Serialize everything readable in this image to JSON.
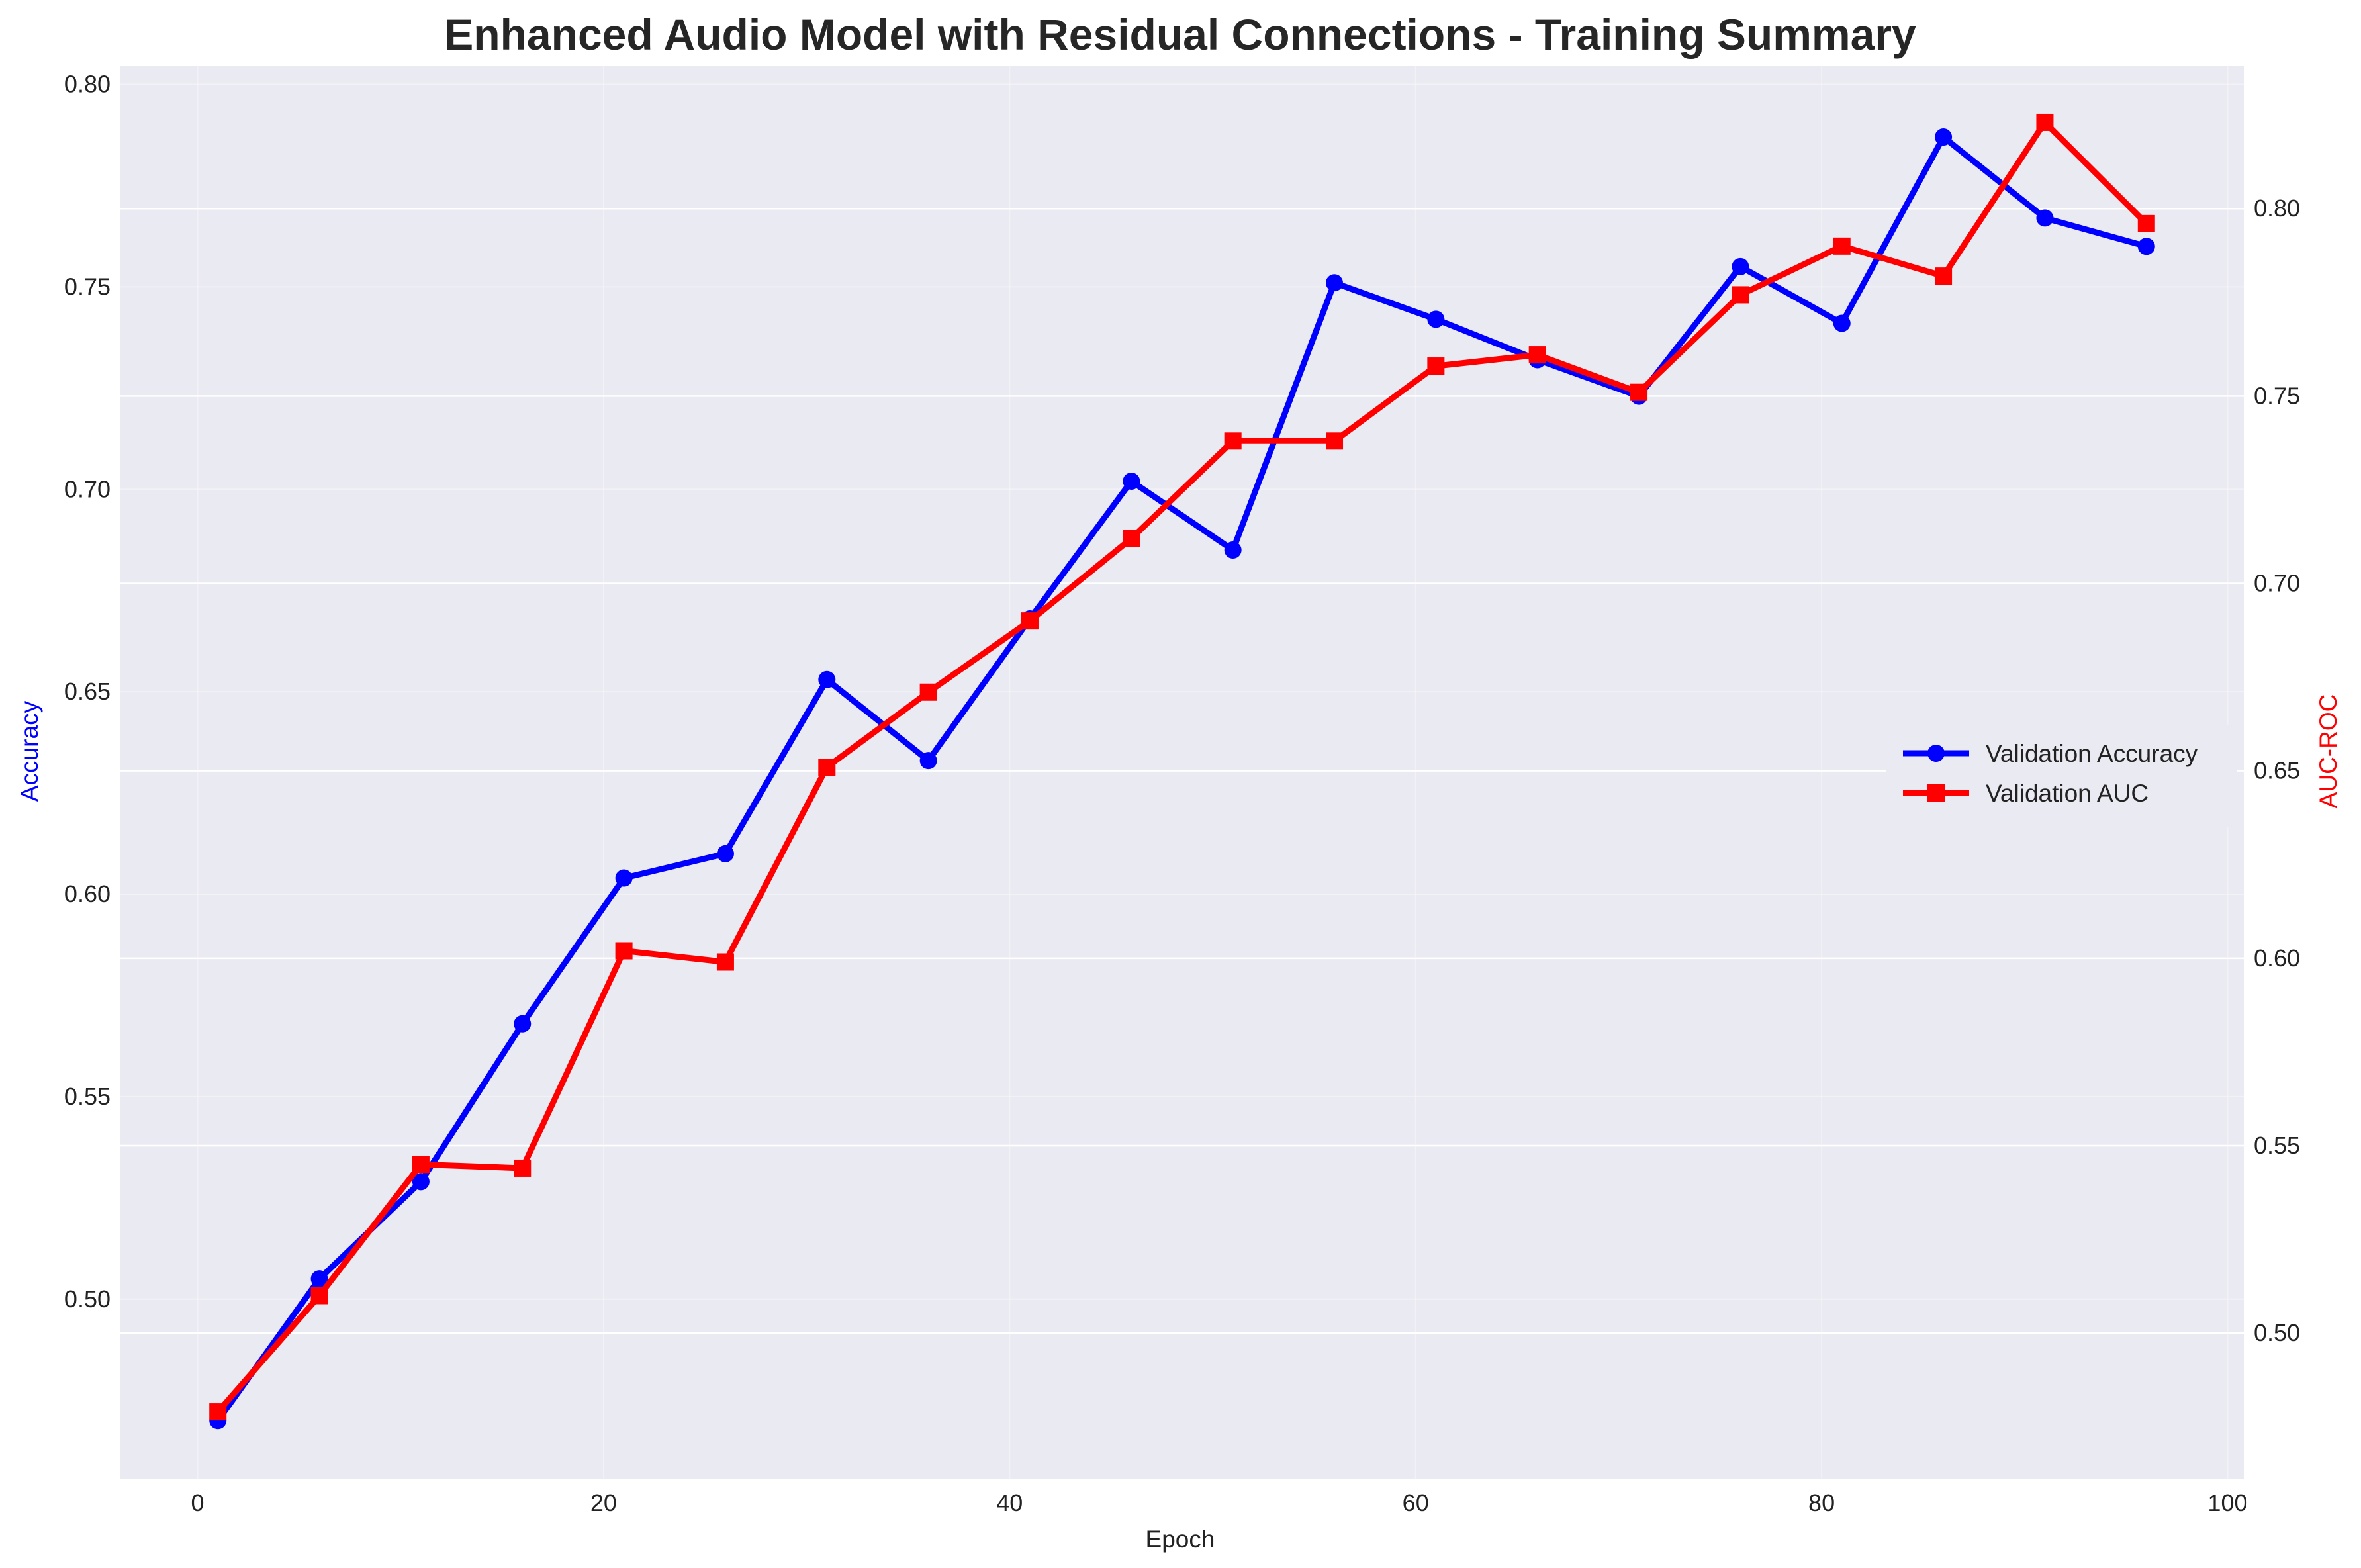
{
  "chart_data": {
    "type": "line",
    "title": "Enhanced Audio Model with Residual Connections - Training Summary",
    "xlabel": "Epoch",
    "ylabel": "Accuracy",
    "y2label": "AUC-ROC",
    "xlim": [
      -3.8,
      100.8
    ],
    "ylim": [
      0.4555,
      0.8045
    ],
    "y2lim": [
      0.461,
      0.838
    ],
    "x_ticks": [
      0,
      20,
      40,
      60,
      80,
      100
    ],
    "y_ticks": [
      0.5,
      0.55,
      0.6,
      0.65,
      0.7,
      0.75,
      0.8
    ],
    "y2_ticks": [
      0.5,
      0.55,
      0.6,
      0.65,
      0.7,
      0.75,
      0.8
    ],
    "x": [
      1,
      6,
      11,
      16,
      21,
      26,
      31,
      36,
      41,
      46,
      51,
      56,
      61,
      66,
      71,
      76,
      81,
      86,
      91,
      96
    ],
    "grid": true,
    "legend_position": "center-right",
    "series": [
      {
        "name": "Validation Accuracy",
        "axis": "left",
        "color": "#0000ff",
        "marker": "circle",
        "values": [
          0.47,
          0.505,
          0.529,
          0.568,
          0.604,
          0.61,
          0.653,
          0.633,
          0.668,
          0.702,
          0.685,
          0.751,
          0.742,
          0.732,
          0.723,
          0.755,
          0.741,
          0.787,
          0.767,
          0.76
        ]
      },
      {
        "name": "Validation AUC",
        "axis": "right",
        "color": "#ff0000",
        "marker": "square",
        "values": [
          0.479,
          0.51,
          0.545,
          0.544,
          0.602,
          0.599,
          0.651,
          0.671,
          0.69,
          0.712,
          0.738,
          0.738,
          0.758,
          0.761,
          0.751,
          0.777,
          0.79,
          0.782,
          0.823,
          0.796
        ]
      }
    ]
  },
  "colors": {
    "plot_background": "#eaeaf2",
    "grid": "#ffffff",
    "accuracy_axis_label": "#0000ff",
    "auc_axis_label": "#ff0000"
  }
}
